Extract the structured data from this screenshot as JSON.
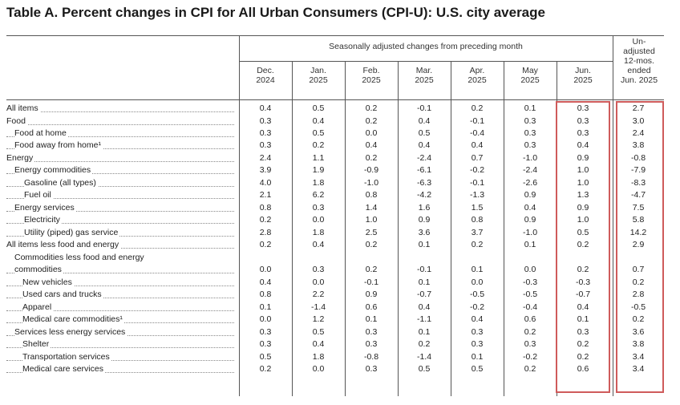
{
  "title": "Table A. Percent changes in CPI for All Urban Consumers (CPI-U): U.S. city average",
  "header": {
    "seasonally_adjusted": "Seasonally adjusted changes from preceding month",
    "columns": [
      {
        "line1": "Dec.",
        "line2": "2024"
      },
      {
        "line1": "Jan.",
        "line2": "2025"
      },
      {
        "line1": "Feb.",
        "line2": "2025"
      },
      {
        "line1": "Mar.",
        "line2": "2025"
      },
      {
        "line1": "Apr.",
        "line2": "2025"
      },
      {
        "line1": "May",
        "line2": "2025"
      },
      {
        "line1": "Jun.",
        "line2": "2025"
      }
    ],
    "unadjusted": [
      "Un-",
      "adjusted",
      "12-mos.",
      "ended",
      "Jun. 2025"
    ]
  },
  "rows": [
    {
      "label": "All items",
      "values": [
        "0.4",
        "0.5",
        "0.2",
        "-0.1",
        "0.2",
        "0.1",
        "0.3",
        "2.7"
      ]
    },
    {
      "label": "Food",
      "values": [
        "0.3",
        "0.4",
        "0.2",
        "0.4",
        "-0.1",
        "0.3",
        "0.3",
        "3.0"
      ]
    },
    {
      "label": "Food at home",
      "values": [
        "0.3",
        "0.5",
        "0.0",
        "0.5",
        "-0.4",
        "0.3",
        "0.3",
        "2.4"
      ]
    },
    {
      "label": "Food away from home¹",
      "values": [
        "0.3",
        "0.2",
        "0.4",
        "0.4",
        "0.4",
        "0.3",
        "0.4",
        "3.8"
      ]
    },
    {
      "label": "Energy",
      "values": [
        "2.4",
        "1.1",
        "0.2",
        "-2.4",
        "0.7",
        "-1.0",
        "0.9",
        "-0.8"
      ]
    },
    {
      "label": "Energy commodities",
      "values": [
        "3.9",
        "1.9",
        "-0.9",
        "-6.1",
        "-0.2",
        "-2.4",
        "1.0",
        "-7.9"
      ]
    },
    {
      "label": "Gasoline (all types)",
      "values": [
        "4.0",
        "1.8",
        "-1.0",
        "-6.3",
        "-0.1",
        "-2.6",
        "1.0",
        "-8.3"
      ]
    },
    {
      "label": "Fuel oil",
      "values": [
        "2.1",
        "6.2",
        "0.8",
        "-4.2",
        "-1.3",
        "0.9",
        "1.3",
        "-4.7"
      ]
    },
    {
      "label": "Energy services",
      "values": [
        "0.8",
        "0.3",
        "1.4",
        "1.6",
        "1.5",
        "0.4",
        "0.9",
        "7.5"
      ]
    },
    {
      "label": "Electricity",
      "values": [
        "0.2",
        "0.0",
        "1.0",
        "0.9",
        "0.8",
        "0.9",
        "1.0",
        "5.8"
      ]
    },
    {
      "label": "Utility (piped) gas service",
      "values": [
        "2.8",
        "1.8",
        "2.5",
        "3.6",
        "3.7",
        "-1.0",
        "0.5",
        "14.2"
      ]
    },
    {
      "label": "All items less food and energy",
      "values": [
        "0.2",
        "0.4",
        "0.2",
        "0.1",
        "0.2",
        "0.1",
        "0.2",
        "2.9"
      ]
    },
    {
      "label": "commodities",
      "label_line1": "Commodities less food and energy",
      "values": [
        "0.0",
        "0.3",
        "0.2",
        "-0.1",
        "0.1",
        "0.0",
        "0.2",
        "0.7"
      ]
    },
    {
      "label": "New vehicles",
      "values": [
        "0.4",
        "0.0",
        "-0.1",
        "0.1",
        "0.0",
        "-0.3",
        "-0.3",
        "0.2"
      ]
    },
    {
      "label": "Used cars and trucks",
      "values": [
        "0.8",
        "2.2",
        "0.9",
        "-0.7",
        "-0.5",
        "-0.5",
        "-0.7",
        "2.8"
      ]
    },
    {
      "label": "Apparel",
      "values": [
        "0.1",
        "-1.4",
        "0.6",
        "0.4",
        "-0.2",
        "-0.4",
        "0.4",
        "-0.5"
      ]
    },
    {
      "label": "Medical care commodities¹",
      "values": [
        "0.0",
        "1.2",
        "0.1",
        "-1.1",
        "0.4",
        "0.6",
        "0.1",
        "0.2"
      ]
    },
    {
      "label": "Services less energy services",
      "values": [
        "0.3",
        "0.5",
        "0.3",
        "0.1",
        "0.3",
        "0.2",
        "0.3",
        "3.6"
      ]
    },
    {
      "label": "Shelter",
      "values": [
        "0.3",
        "0.4",
        "0.3",
        "0.2",
        "0.3",
        "0.3",
        "0.2",
        "3.8"
      ]
    },
    {
      "label": "Transportation services",
      "values": [
        "0.5",
        "1.8",
        "-0.8",
        "-1.4",
        "0.1",
        "-0.2",
        "0.2",
        "3.4"
      ]
    },
    {
      "label": "Medical care services",
      "values": [
        "0.2",
        "0.0",
        "0.3",
        "0.5",
        "0.5",
        "0.2",
        "0.6",
        "3.4"
      ]
    }
  ],
  "colors": {
    "highlight": "#cf5b5b",
    "rule": "#555555"
  }
}
